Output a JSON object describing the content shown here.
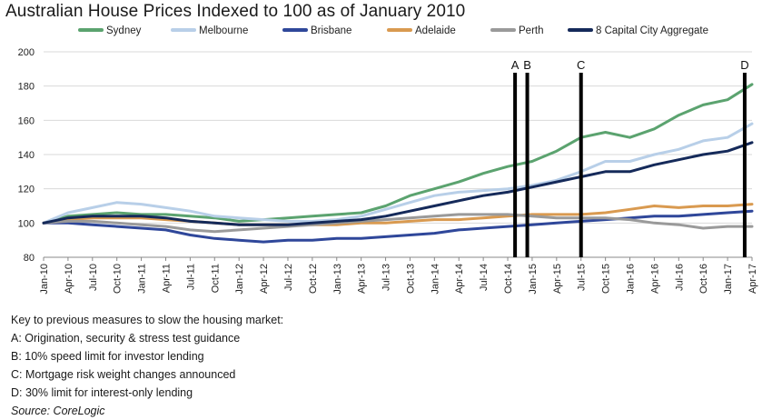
{
  "page": {
    "notes_heading": "Key to previous measures to slow the housing market:",
    "notes": [
      "A: Origination, security & stress test guidance",
      "B: 10% speed limit for investor lending",
      "C: Mortgage risk weight changes announced",
      "D: 30% limit for interest-only lending"
    ],
    "source": "Source: CoreLogic"
  },
  "chart_data": {
    "type": "line",
    "title": "Australian House Prices Indexed to 100 as of January 2010",
    "xlabel": "",
    "ylabel": "",
    "ylim": [
      80,
      200
    ],
    "yticks": [
      80,
      100,
      120,
      140,
      160,
      180,
      200
    ],
    "grid": "horizontal",
    "legend_position": "top",
    "x_ticks": [
      "Jan-10",
      "Apr-10",
      "Jul-10",
      "Oct-10",
      "Jan-11",
      "Apr-11",
      "Jul-11",
      "Oct-11",
      "Jan-12",
      "Apr-12",
      "Jul-12",
      "Oct-12",
      "Jan-13",
      "Apr-13",
      "Jul-13",
      "Oct-13",
      "Jan-14",
      "Apr-14",
      "Jul-14",
      "Oct-14",
      "Jan-15",
      "Apr-15",
      "Jul-15",
      "Oct-15",
      "Jan-16",
      "Apr-16",
      "Jul-16",
      "Oct-16",
      "Jan-17",
      "Apr-17"
    ],
    "markers": [
      {
        "label": "A",
        "x": 19.3
      },
      {
        "label": "B",
        "x": 19.8
      },
      {
        "label": "C",
        "x": 22.0
      },
      {
        "label": "D",
        "x": 28.7
      }
    ],
    "series": [
      {
        "name": "Sydney",
        "color": "#5ba36f",
        "values": [
          100,
          104,
          105,
          106,
          105,
          105,
          104,
          103,
          101,
          102,
          103,
          104,
          105,
          106,
          110,
          116,
          120,
          124,
          129,
          133,
          136,
          142,
          150,
          153,
          150,
          155,
          163,
          169,
          172,
          181
        ]
      },
      {
        "name": "Melbourne",
        "color": "#b8cfe8",
        "values": [
          100,
          106,
          109,
          112,
          111,
          109,
          107,
          104,
          103,
          102,
          101,
          101,
          102,
          104,
          108,
          112,
          116,
          118,
          119,
          120,
          122,
          125,
          130,
          136,
          136,
          140,
          143,
          148,
          150,
          158
        ]
      },
      {
        "name": "Brisbane",
        "color": "#2f479a",
        "values": [
          100,
          100,
          99,
          98,
          97,
          96,
          93,
          91,
          90,
          89,
          90,
          90,
          91,
          91,
          92,
          93,
          94,
          96,
          97,
          98,
          99,
          100,
          101,
          102,
          103,
          104,
          104,
          105,
          106,
          107
        ]
      },
      {
        "name": "Adelaide",
        "color": "#d99a50",
        "values": [
          100,
          102,
          103,
          103,
          103,
          102,
          101,
          100,
          99,
          99,
          99,
          99,
          99,
          100,
          100,
          101,
          102,
          102,
          103,
          104,
          105,
          105,
          105,
          106,
          108,
          110,
          109,
          110,
          110,
          111
        ]
      },
      {
        "name": "Perth",
        "color": "#9a9a9a",
        "values": [
          100,
          101,
          101,
          100,
          99,
          98,
          96,
          95,
          96,
          97,
          98,
          99,
          100,
          101,
          102,
          103,
          104,
          105,
          105,
          105,
          104,
          103,
          103,
          103,
          102,
          100,
          99,
          97,
          98,
          98
        ]
      },
      {
        "name": "8 Capital City Aggregate",
        "color": "#152a5a",
        "values": [
          100,
          103,
          104,
          104,
          104,
          103,
          101,
          100,
          99,
          99,
          99,
          100,
          101,
          102,
          104,
          107,
          110,
          113,
          116,
          118,
          121,
          124,
          127,
          130,
          130,
          134,
          137,
          140,
          142,
          147
        ]
      }
    ]
  }
}
